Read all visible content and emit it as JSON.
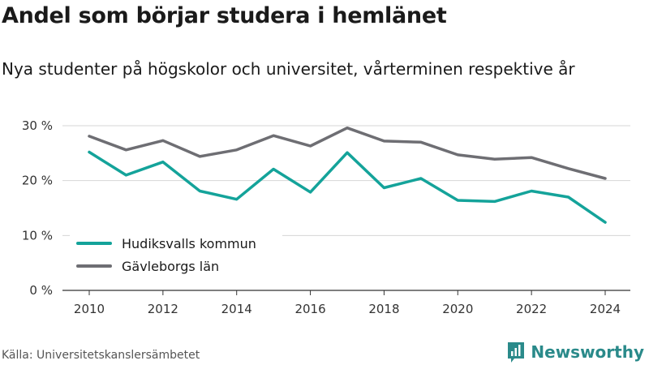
{
  "title": "Andel som börjar studera i hemlänet",
  "subtitle": "Nya studenter på högskolor och universitet, vårterminen respektive år",
  "source": "Källa: Universitetskanslersämbetet",
  "brand": {
    "name": "Newsworthy",
    "icon": "newsworthy-logo-icon",
    "color": "#2a8a8a"
  },
  "chart_data": {
    "type": "line",
    "x": [
      2010,
      2011,
      2012,
      2013,
      2014,
      2015,
      2016,
      2017,
      2018,
      2019,
      2020,
      2021,
      2022,
      2023,
      2024
    ],
    "x_ticks": [
      "2010",
      "2012",
      "2014",
      "2016",
      "2018",
      "2020",
      "2022",
      "2024"
    ],
    "y_ticks": [
      "0 %",
      "10 %",
      "20 %",
      "30 %"
    ],
    "ylim": [
      0,
      30
    ],
    "grid": true,
    "legend_position": "lower-left",
    "series": [
      {
        "name": "Hudiksvalls kommun",
        "color": "#14a39a",
        "values": [
          25.2,
          21.0,
          23.4,
          18.1,
          16.6,
          22.1,
          17.9,
          25.1,
          18.7,
          20.4,
          16.4,
          16.2,
          18.1,
          17.0,
          12.4
        ]
      },
      {
        "name": "Gävleborgs län",
        "color": "#6e6e73",
        "values": [
          28.1,
          25.6,
          27.3,
          24.4,
          25.6,
          28.2,
          26.3,
          29.6,
          27.2,
          27.0,
          24.7,
          23.9,
          24.2,
          22.2,
          20.4
        ]
      }
    ]
  }
}
